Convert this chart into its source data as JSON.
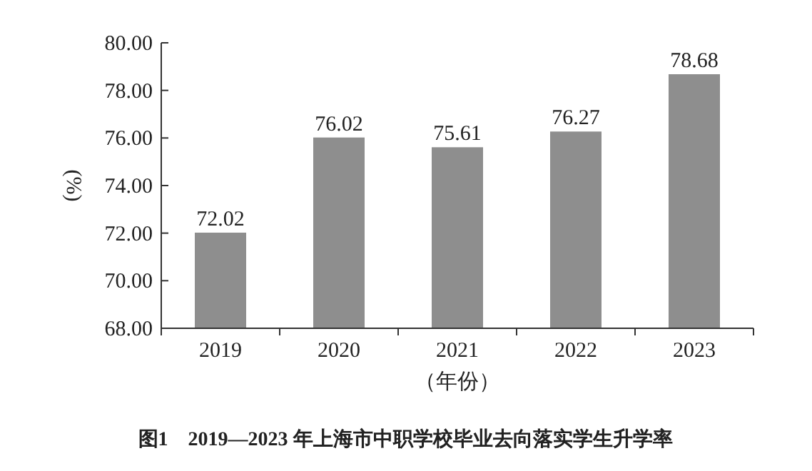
{
  "chart_data": {
    "type": "bar",
    "title": "图1　2019—2023 年上海市中职学校毕业去向落实学生升学率",
    "xlabel": "（年份）",
    "ylabel": "(%)",
    "categories": [
      "2019",
      "2020",
      "2021",
      "2022",
      "2023"
    ],
    "values": [
      72.02,
      76.02,
      75.61,
      76.27,
      78.68
    ],
    "color": "#8e8e8e",
    "data_labels": true,
    "ylim": [
      68,
      80
    ],
    "yticks": [
      {
        "value": 68,
        "label": "68.00"
      },
      {
        "value": 70,
        "label": "70.00"
      },
      {
        "value": 72,
        "label": "72.00"
      },
      {
        "value": 74,
        "label": "74.00"
      },
      {
        "value": 76,
        "label": "76.00"
      },
      {
        "value": 78,
        "label": "78.00"
      },
      {
        "value": 80,
        "label": "80.00"
      }
    ]
  }
}
